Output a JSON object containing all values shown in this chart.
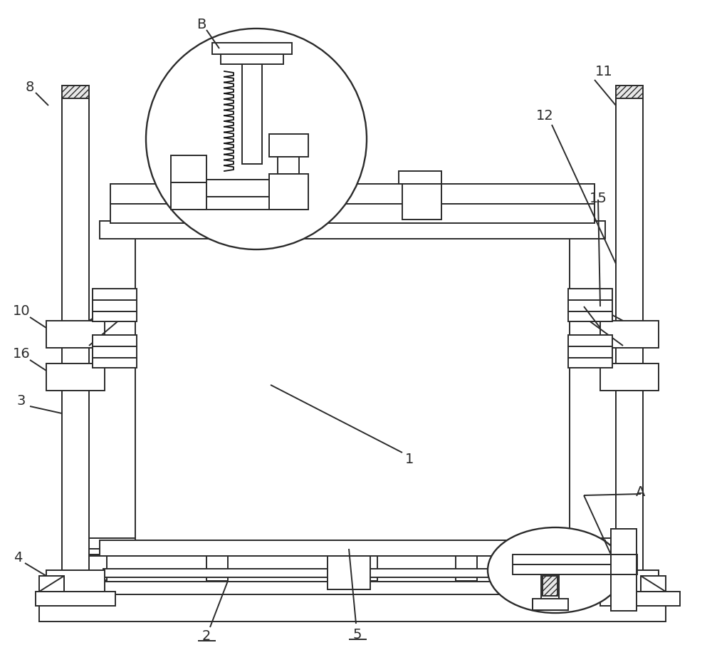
{
  "bg_color": "#ffffff",
  "lc": "#2b2b2b",
  "lw": 1.4,
  "fig_width": 10.0,
  "fig_height": 9.26
}
